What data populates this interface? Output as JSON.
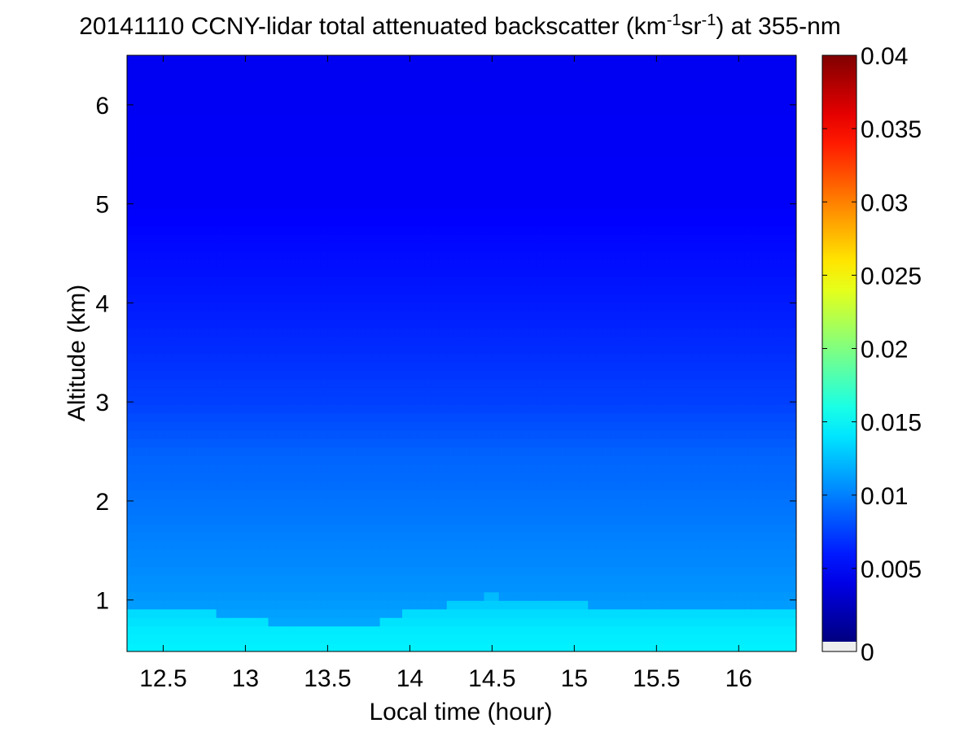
{
  "chart_data": {
    "type": "heatmap",
    "title_parts": [
      "20141110 CCNY-lidar total attenuated backscatter (km",
      "-1",
      "sr",
      "-1",
      ") at 355-nm"
    ],
    "xlabel": "Local time (hour)",
    "ylabel": "Altitude (km)",
    "xlim": [
      12.28,
      16.35
    ],
    "ylim": [
      0.48,
      6.5
    ],
    "xticks": [
      12.5,
      13,
      13.5,
      14,
      14.5,
      15,
      15.5,
      16
    ],
    "xtick_labels": [
      "12.5",
      "13",
      "13.5",
      "14",
      "14.5",
      "15",
      "15.5",
      "16"
    ],
    "yticks": [
      1,
      2,
      3,
      4,
      5,
      6
    ],
    "ytick_labels": [
      "1",
      "2",
      "3",
      "4",
      "5",
      "6"
    ],
    "colorbar": {
      "colormap": "jet",
      "clim": [
        0,
        0.04
      ],
      "ticks": [
        0,
        0.005,
        0.01,
        0.015,
        0.02,
        0.025,
        0.03,
        0.035,
        0.04
      ],
      "tick_labels": [
        "0",
        "0.005",
        "0.01",
        "0.015",
        "0.02",
        "0.025",
        "0.03",
        "0.035",
        "0.04"
      ],
      "nan_color": "#eeeeee"
    },
    "boundary_layer_top_km": {
      "time": [
        12.28,
        12.5,
        13.0,
        13.3,
        13.5,
        13.8,
        14.0,
        14.3,
        14.5,
        14.7,
        15.0,
        15.3,
        15.5,
        16.0,
        16.35
      ],
      "altitude": [
        0.9,
        0.9,
        0.85,
        0.72,
        0.7,
        0.78,
        0.9,
        0.97,
        1.05,
        1.0,
        0.97,
        0.92,
        0.95,
        0.93,
        0.93
      ]
    },
    "profile": {
      "altitude_km": [
        0.48,
        0.7,
        0.9,
        1.1,
        1.5,
        2.0,
        2.5,
        3.0,
        4.0,
        5.0,
        6.5
      ],
      "backscatter_inside_pbl": [
        0.0145,
        0.0142,
        0.0135,
        0.0118,
        0.0105,
        0.0095,
        0.0088,
        0.0075,
        0.006,
        0.0048,
        0.0045
      ],
      "backscatter_above_pbl": [
        0.0125,
        0.0118,
        0.0112,
        0.0108,
        0.0102,
        0.0095,
        0.0088,
        0.0075,
        0.006,
        0.0048,
        0.0045
      ]
    }
  }
}
